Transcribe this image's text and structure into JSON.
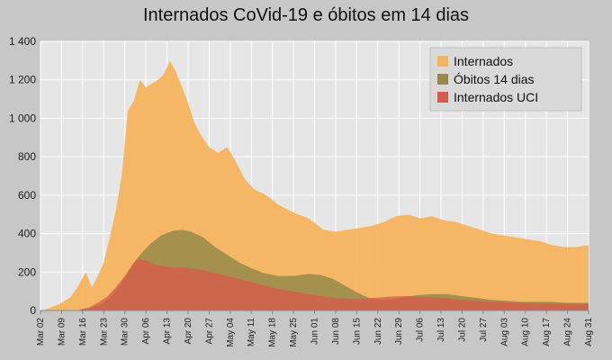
{
  "chart_data": {
    "type": "area",
    "title": "Internados CoVid-19 e óbitos em 14 dias",
    "xlabel": "",
    "ylabel": "",
    "ylim": [
      0,
      1400
    ],
    "yticks": [
      0,
      200,
      400,
      600,
      800,
      1000,
      1200,
      1400
    ],
    "ytick_labels": [
      "0",
      "200",
      "400",
      "600",
      "800",
      "1 000",
      "1 200",
      "1 400"
    ],
    "xlim": [
      "2020-03-02",
      "2020-08-31"
    ],
    "xtick_labels": [
      "Mar 02",
      "Mar 09",
      "Mar 16",
      "Mar 23",
      "Mar 30",
      "Apr 06",
      "Apr 13",
      "Apr 20",
      "Apr 27",
      "May 04",
      "May 11",
      "May 18",
      "May 25",
      "Jun 01",
      "Jun 08",
      "Jun 15",
      "Jun 22",
      "Jun 29",
      "Jul 06",
      "Jul 13",
      "Jul 20",
      "Jul 27",
      "Aug 03",
      "Aug 10",
      "Aug 17",
      "Aug 24",
      "Aug 31"
    ],
    "grid": true,
    "legend_position": "top-right",
    "series": [
      {
        "name": "Internados",
        "color": "#f5b45f",
        "x": [
          "2020-03-03",
          "2020-03-06",
          "2020-03-09",
          "2020-03-12",
          "2020-03-15",
          "2020-03-17",
          "2020-03-19",
          "2020-03-21",
          "2020-03-23",
          "2020-03-25",
          "2020-03-27",
          "2020-03-29",
          "2020-03-31",
          "2020-04-02",
          "2020-04-04",
          "2020-04-06",
          "2020-04-08",
          "2020-04-10",
          "2020-04-12",
          "2020-04-14",
          "2020-04-15",
          "2020-04-16",
          "2020-04-18",
          "2020-04-20",
          "2020-04-22",
          "2020-04-24",
          "2020-04-27",
          "2020-04-30",
          "2020-05-03",
          "2020-05-06",
          "2020-05-09",
          "2020-05-12",
          "2020-05-16",
          "2020-05-20",
          "2020-05-25",
          "2020-05-30",
          "2020-06-04",
          "2020-06-08",
          "2020-06-12",
          "2020-06-16",
          "2020-06-20",
          "2020-06-24",
          "2020-06-28",
          "2020-07-02",
          "2020-07-06",
          "2020-07-10",
          "2020-07-14",
          "2020-07-18",
          "2020-07-22",
          "2020-07-26",
          "2020-07-30",
          "2020-08-03",
          "2020-08-07",
          "2020-08-11",
          "2020-08-15",
          "2020-08-19",
          "2020-08-23",
          "2020-08-27",
          "2020-08-31"
        ],
        "values": [
          0,
          20,
          40,
          70,
          140,
          200,
          120,
          180,
          250,
          380,
          520,
          700,
          1040,
          1090,
          1200,
          1160,
          1180,
          1200,
          1230,
          1300,
          1270,
          1240,
          1160,
          1080,
          980,
          920,
          850,
          820,
          850,
          770,
          680,
          630,
          600,
          550,
          510,
          480,
          420,
          410,
          420,
          430,
          440,
          460,
          490,
          500,
          480,
          490,
          470,
          460,
          440,
          420,
          400,
          390,
          380,
          370,
          360,
          340,
          330,
          330,
          340
        ]
      },
      {
        "name": "Óbitos 14 dias",
        "color": "#98894a",
        "x": [
          "2020-03-14",
          "2020-03-18",
          "2020-03-22",
          "2020-03-26",
          "2020-03-30",
          "2020-04-03",
          "2020-04-07",
          "2020-04-11",
          "2020-04-15",
          "2020-04-18",
          "2020-04-21",
          "2020-04-25",
          "2020-04-29",
          "2020-05-03",
          "2020-05-07",
          "2020-05-11",
          "2020-05-15",
          "2020-05-20",
          "2020-05-25",
          "2020-05-30",
          "2020-06-03",
          "2020-06-07",
          "2020-06-11",
          "2020-06-15",
          "2020-06-19",
          "2020-06-23",
          "2020-06-27",
          "2020-07-01",
          "2020-07-05",
          "2020-07-10",
          "2020-07-15",
          "2020-07-20",
          "2020-07-25",
          "2020-07-30",
          "2020-08-04",
          "2020-08-09",
          "2020-08-14",
          "2020-08-19",
          "2020-08-24",
          "2020-08-31"
        ],
        "values": [
          0,
          10,
          30,
          80,
          170,
          270,
          340,
          390,
          415,
          420,
          410,
          380,
          330,
          290,
          250,
          220,
          195,
          180,
          180,
          190,
          185,
          165,
          130,
          95,
          65,
          55,
          60,
          70,
          80,
          85,
          85,
          75,
          65,
          55,
          50,
          45,
          45,
          45,
          40,
          40
        ]
      },
      {
        "name": "Internados UCI",
        "color": "#d95a4c",
        "x": [
          "2020-03-15",
          "2020-03-18",
          "2020-03-21",
          "2020-03-24",
          "2020-03-27",
          "2020-03-30",
          "2020-04-02",
          "2020-04-04",
          "2020-04-06",
          "2020-04-09",
          "2020-04-12",
          "2020-04-15",
          "2020-04-18",
          "2020-04-21",
          "2020-04-25",
          "2020-04-29",
          "2020-05-03",
          "2020-05-08",
          "2020-05-13",
          "2020-05-18",
          "2020-05-23",
          "2020-05-28",
          "2020-06-03",
          "2020-06-08",
          "2020-06-14",
          "2020-06-20",
          "2020-06-26",
          "2020-07-02",
          "2020-07-08",
          "2020-07-14",
          "2020-07-20",
          "2020-07-26",
          "2020-08-01",
          "2020-08-07",
          "2020-08-13",
          "2020-08-19",
          "2020-08-25",
          "2020-08-31"
        ],
        "values": [
          5,
          15,
          40,
          70,
          120,
          180,
          250,
          270,
          260,
          240,
          230,
          225,
          225,
          220,
          210,
          195,
          180,
          160,
          140,
          120,
          105,
          90,
          75,
          65,
          60,
          65,
          72,
          75,
          70,
          65,
          55,
          50,
          45,
          40,
          38,
          35,
          35,
          35
        ]
      }
    ]
  }
}
